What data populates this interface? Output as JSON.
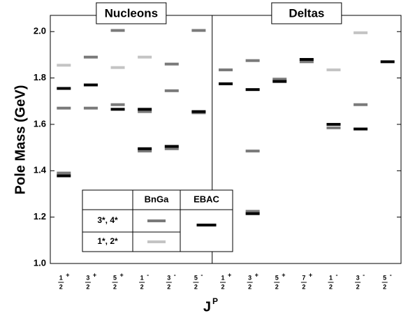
{
  "chart_data": {
    "type": "level",
    "ylabel": "Pole Mass  (GeV)",
    "xlabel": {
      "base": "J",
      "sup": "P"
    },
    "ylim": [
      1.0,
      2.07
    ],
    "yticks": [
      {
        "value": 1.0,
        "label": "1.0"
      },
      1.2,
      1.4,
      1.6,
      1.8,
      {
        "value": 2.0,
        "label": "2.0"
      }
    ],
    "legend_group": "BnGa",
    "groups": [
      {
        "name": "Nucleons",
        "categories": [
          {
            "numerator": "1",
            "denominator": "2",
            "parity": "+"
          },
          {
            "numerator": "3",
            "denominator": "2",
            "parity": "+"
          },
          {
            "numerator": "5",
            "denominator": "2",
            "parity": "+"
          },
          {
            "numerator": "1",
            "denominator": "2",
            "parity": "-"
          },
          {
            "numerator": "3",
            "denominator": "2",
            "parity": "-"
          },
          {
            "numerator": "5",
            "denominator": "2",
            "parity": "-"
          }
        ]
      },
      {
        "name": "Deltas",
        "categories": [
          {
            "numerator": "1",
            "denominator": "2",
            "parity": "+"
          },
          {
            "numerator": "3",
            "denominator": "2",
            "parity": "+"
          },
          {
            "numerator": "5",
            "denominator": "2",
            "parity": "+"
          },
          {
            "numerator": "7",
            "denominator": "2",
            "parity": "+"
          },
          {
            "numerator": "1",
            "denominator": "2",
            "parity": "-"
          },
          {
            "numerator": "3",
            "denominator": "2",
            "parity": "-"
          },
          {
            "numerator": "5",
            "denominator": "2",
            "parity": "-"
          }
        ]
      }
    ],
    "series": [
      {
        "name": "3*, 4*",
        "color": "#7a7a7a",
        "values": [
          [
            [
              1.67,
              1.39
            ],
            [
              1.89,
              1.67
            ],
            [
              2.005,
              1.685
            ],
            [
              1.655,
              1.485
            ],
            [
              1.86,
              1.745,
              1.495
            ],
            [
              2.005,
              1.65
            ]
          ],
          [
            [
              1.835
            ],
            [
              1.875,
              1.485,
              1.225
            ],
            [
              1.795
            ],
            [
              1.87
            ],
            [
              1.585
            ],
            [
              1.685
            ],
            []
          ]
        ]
      },
      {
        "name": "1*, 2*",
        "color": "#c4c4c4",
        "values": [
          [
            [
              1.855
            ],
            [],
            [
              1.845
            ],
            [
              1.89
            ],
            [],
            []
          ],
          [
            [],
            [],
            [],
            [],
            [
              1.835
            ],
            [
              1.995
            ],
            []
          ]
        ]
      },
      {
        "name": "EBAC",
        "color": "#000000",
        "values": [
          [
            [
              1.755,
              1.378
            ],
            [
              1.77
            ],
            [
              1.665
            ],
            [
              1.665,
              1.495
            ],
            [
              1.505
            ],
            [
              1.655
            ]
          ],
          [
            [
              1.775
            ],
            [
              1.75,
              1.215
            ],
            [
              1.785
            ],
            [
              1.88
            ],
            [
              1.6
            ],
            [
              1.58
            ],
            [
              1.87
            ]
          ]
        ]
      }
    ]
  }
}
